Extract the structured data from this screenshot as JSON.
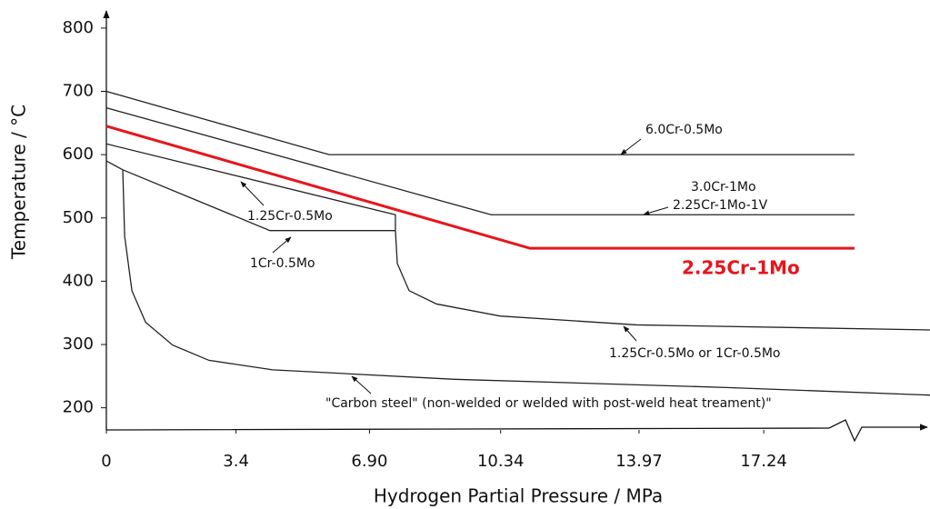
{
  "chart_data": {
    "type": "line",
    "xlabel": "Hydrogen Partial Pressure / MPa",
    "ylabel": "Temperature / °C",
    "xlim": [
      0,
      21.6
    ],
    "ylim": [
      165,
      830
    ],
    "xticks": [
      0,
      3.4,
      {
        "value": 6.9,
        "label": "6.90"
      },
      10.34,
      13.97,
      17.24
    ],
    "yticks": [
      200,
      300,
      400,
      500,
      600,
      700,
      800
    ],
    "series": [
      {
        "color": "#222222",
        "x": [
          0,
          5.84,
          19.62
        ],
        "values": [
          700,
          600,
          600
        ]
      },
      {
        "color": "#222222",
        "x": [
          0,
          10.09,
          19.62
        ],
        "values": [
          674,
          505,
          505
        ]
      },
      {
        "color": "#e8141b",
        "x": [
          0,
          11.11,
          19.62
        ],
        "values": [
          645,
          452,
          452
        ]
      },
      {
        "color": "#222222",
        "x": [
          0,
          7.58,
          7.58
        ],
        "values": [
          617,
          505,
          480
        ]
      },
      {
        "color": "#222222",
        "x": [
          0,
          0.43,
          4.29,
          7.58
        ],
        "values": [
          590,
          576,
          480,
          480
        ]
      },
      {
        "color": "#222222",
        "x": [
          7.58,
          7.63,
          7.94,
          8.66,
          10.32,
          13.9,
          21.6
        ],
        "values": [
          480,
          428,
          385,
          364,
          345,
          331,
          323
        ]
      },
      {
        "color": "#222222",
        "x": [
          0.43,
          0.48,
          0.67,
          1.03,
          1.74,
          2.69,
          4.36,
          9.13,
          16.28,
          21.6
        ],
        "values": [
          576,
          471,
          385,
          335,
          299,
          275,
          260,
          245,
          232,
          220
        ]
      }
    ],
    "annotations": [
      {
        "text": "6.0Cr-0.5Mo"
      },
      {
        "text": "3.0Cr-1Mo"
      },
      {
        "text": "2.25Cr-1Mo-1V"
      },
      {
        "text": "2.25Cr-1Mo",
        "color": "#e8141b"
      },
      {
        "text": "1.25Cr-0.5Mo"
      },
      {
        "text": "1Cr-0.5Mo"
      },
      {
        "text": "1.25Cr-0.5Mo or 1Cr-0.5Mo"
      },
      {
        "text": "\"Carbon steel\" (non-welded or welded with post-weld heat treament)\""
      }
    ]
  }
}
